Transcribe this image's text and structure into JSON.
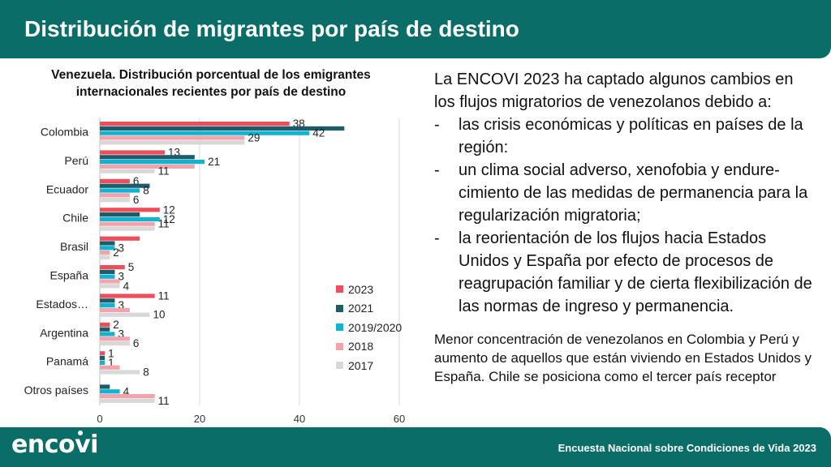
{
  "header": {
    "title": "Distribución de migrantes por país de destino"
  },
  "chart_data": {
    "type": "bar",
    "orientation": "horizontal",
    "title": "Venezuela. Distribución porcentual de los emigrantes internacionales recientes por país de destino",
    "categories": [
      "Colombia",
      "Perú",
      "Ecuador",
      "Chile",
      "Brasil",
      "España",
      "Estados…",
      "Argentina",
      "Panamá",
      "Otros países"
    ],
    "series": [
      {
        "name": "2023",
        "color": "#ec4e5b",
        "values": [
          38,
          13,
          6,
          12,
          8,
          5,
          11,
          2,
          1,
          0
        ],
        "labels": [
          "38",
          "13",
          "6",
          "12",
          "",
          "5",
          "11",
          "2",
          "1",
          ""
        ]
      },
      {
        "name": "2021",
        "color": "#1d5d6b",
        "values": [
          49,
          19,
          10,
          8,
          3,
          3,
          3,
          2,
          1,
          2
        ],
        "labels": [
          "",
          "",
          "",
          "",
          "",
          "",
          "",
          "",
          "",
          ""
        ]
      },
      {
        "name": "2019/2020",
        "color": "#11b3d1",
        "values": [
          42,
          21,
          8,
          12,
          3,
          3,
          3,
          3,
          1,
          4
        ],
        "labels": [
          "42",
          "21",
          "8",
          "12",
          "3",
          "3",
          "3",
          "3",
          "1",
          "4"
        ]
      },
      {
        "name": "2018",
        "color": "#f3a3ab",
        "values": [
          29,
          19,
          6,
          11,
          2,
          4,
          6,
          6,
          4,
          11
        ],
        "labels": [
          "29",
          "",
          "",
          "11",
          "2",
          "",
          "",
          "",
          "",
          ""
        ]
      },
      {
        "name": "2017",
        "color": "#d8d8d8",
        "values": [
          29,
          11,
          6,
          11,
          2,
          4,
          10,
          6,
          8,
          11
        ],
        "labels": [
          "",
          "11",
          "6",
          "",
          "",
          "4",
          "10",
          "6",
          "8",
          "11"
        ]
      }
    ],
    "xlim": [
      0,
      60
    ],
    "xticks": [
      "0",
      "20",
      "40",
      "60"
    ],
    "grid": true,
    "legend": "right"
  },
  "text": {
    "intro": "La ENCOVI 2023 ha captado algunos cambios en los flujos migratorios de venezolanos debido a:",
    "bullets": [
      "las crisis económicas y políticas en países de la región:",
      "un clima social adverso, xenofobia y endure-cimiento de las medidas de permanencia para la regularización migratoria;",
      "la reorientación de los flujos hacia Estados Unidos y España por efecto de procesos de reagrupación familiar y de cierta flexibilización de las normas de ingreso y permanencia."
    ],
    "bullet_marker": "-",
    "conclusion": "Menor concentración de venezolanos en Colombia y Perú y aumento de aquellos que están viviendo en Estados Unidos y España. Chile se posiciona como el tercer país receptor"
  },
  "footer": {
    "logo": "encovi",
    "subtitle": "Encuesta Nacional sobre Condiciones de Vida 2023"
  }
}
